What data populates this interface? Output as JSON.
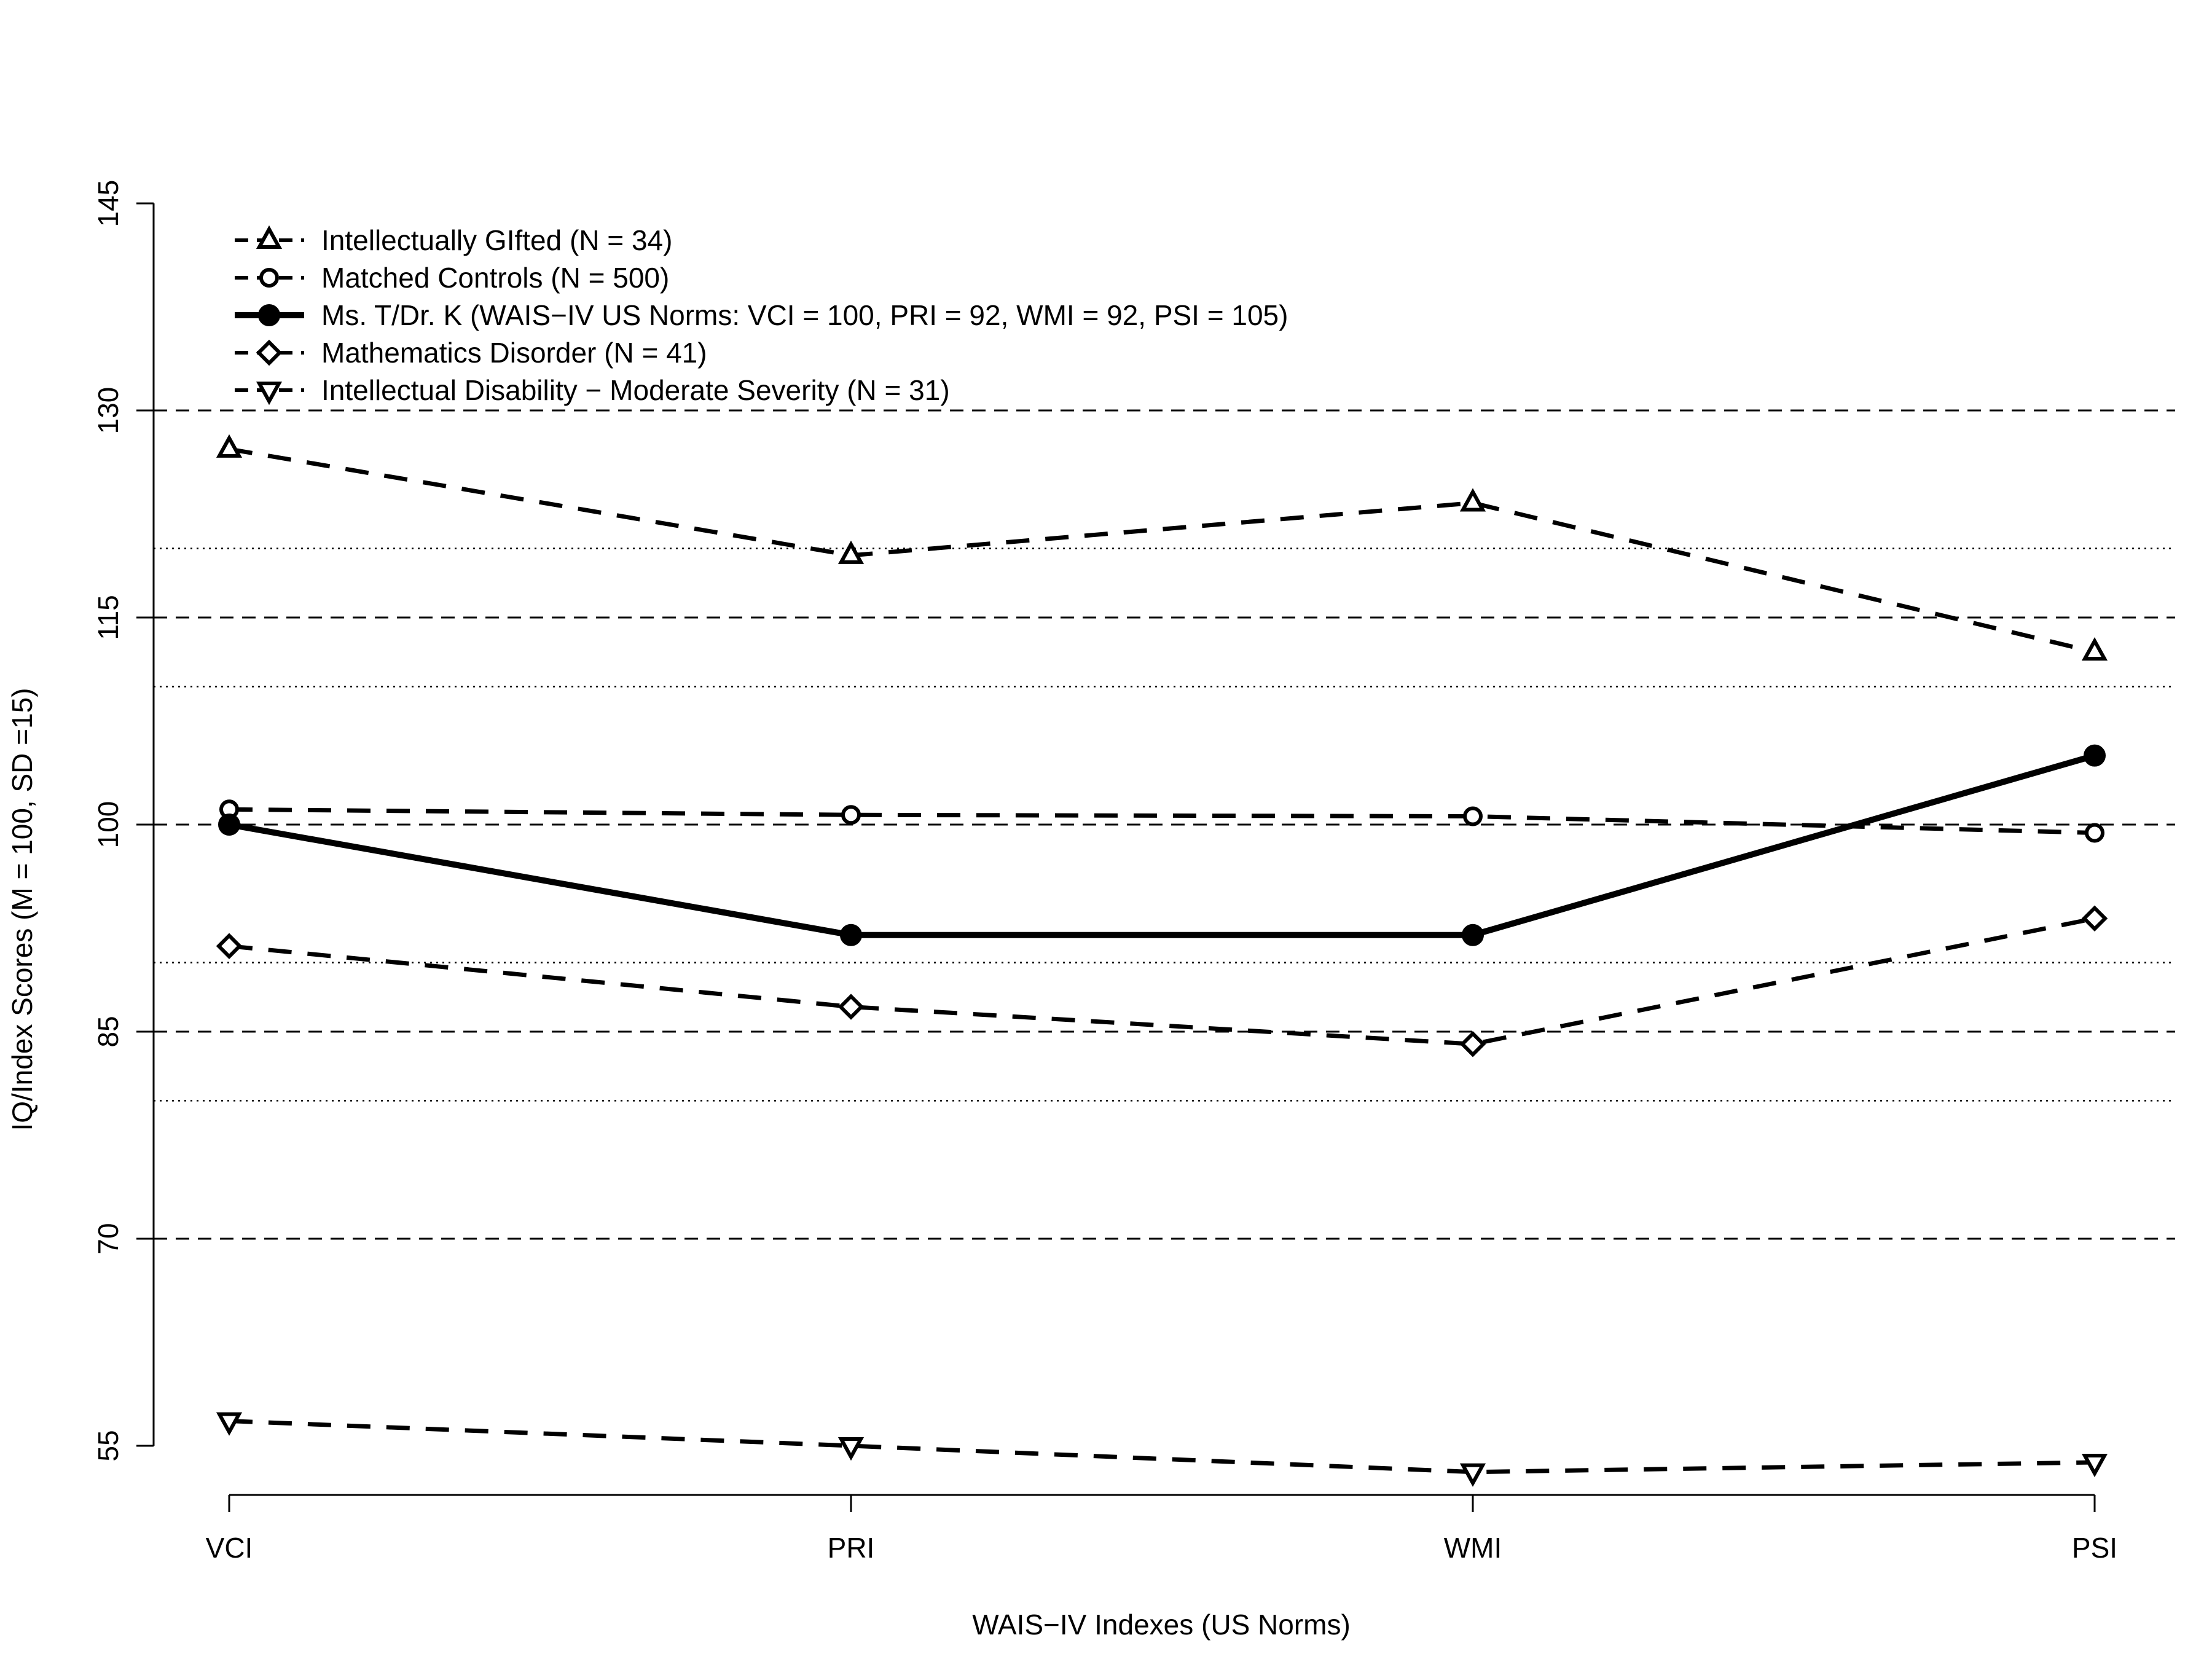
{
  "chart_data": {
    "type": "line",
    "title": "",
    "xlabel": "WAIS−IV Indexes (US Norms)",
    "ylabel": "IQ/Index Scores (M = 100, SD =15)",
    "categories": [
      "VCI",
      "PRI",
      "WMI",
      "PSI"
    ],
    "ylim": [
      53,
      145
    ],
    "yticks": [
      55,
      70,
      85,
      100,
      115,
      130,
      145
    ],
    "grid": {
      "dashed_lines": [
        70,
        85,
        100,
        115,
        130
      ],
      "dotted_lines": [
        80,
        90,
        110,
        120
      ]
    },
    "legend_position": "top-left",
    "series": [
      {
        "name": "Intellectually GIfted (N = 34)",
        "values": [
          127.2,
          119.5,
          123.3,
          112.5
        ],
        "marker": "triangle-up",
        "line": "dashed"
      },
      {
        "name": "Matched Controls (N = 500)",
        "values": [
          101.1,
          100.7,
          100.6,
          99.4
        ],
        "marker": "circle-open",
        "line": "dashed"
      },
      {
        "name": "Ms. T/Dr. K (WAIS−IV US Norms: VCI = 100, PRI = 92, WMI = 92, PSI = 105)",
        "values": [
          100,
          92,
          92,
          105
        ],
        "marker": "circle-filled",
        "line": "solid"
      },
      {
        "name": "Mathematics Disorder (N = 41)",
        "values": [
          91.2,
          86.8,
          84.1,
          93.2
        ],
        "marker": "diamond",
        "line": "dashed"
      },
      {
        "name": "Intellectual Disability − Moderate Severity (N = 31)",
        "values": [
          56.8,
          55.0,
          53.1,
          53.8
        ],
        "marker": "triangle-down",
        "line": "dashed"
      }
    ]
  }
}
